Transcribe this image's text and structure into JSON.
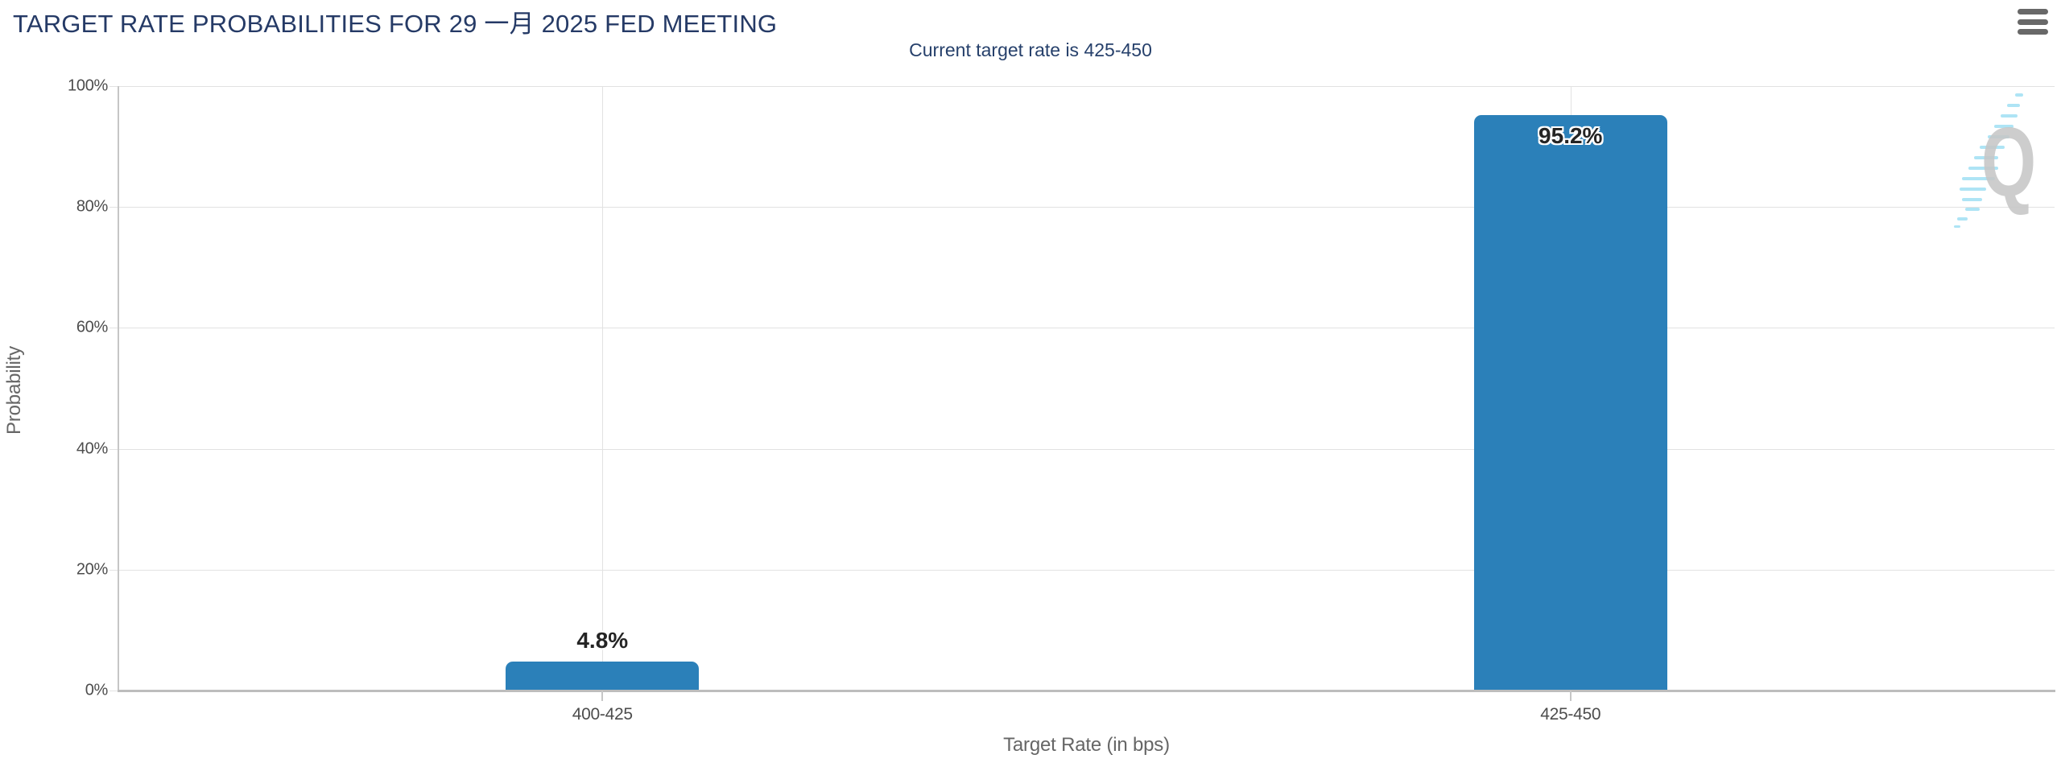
{
  "chart_data": {
    "type": "bar",
    "title": "TARGET RATE PROBABILITIES FOR 29 一月 2025 FED MEETING",
    "subtitle": "Current target rate is 425-450",
    "categories": [
      "400-425",
      "425-450"
    ],
    "values": [
      4.8,
      95.2
    ],
    "value_labels": [
      "4.8%",
      "95.2%"
    ],
    "xlabel": "Target Rate (in bps)",
    "ylabel": "Probability",
    "ylim": [
      0,
      100
    ],
    "yticks": [
      0,
      20,
      40,
      60,
      80,
      100
    ],
    "ytick_labels": [
      "0%",
      "20%",
      "40%",
      "60%",
      "80%",
      "100%"
    ],
    "grid": true,
    "legend": false
  },
  "colors": {
    "bar": "#2b80b9",
    "title_text": "#253a66",
    "subtitle_text": "#26406b",
    "axis_label": "#4d4d4d",
    "axis_title": "#666666",
    "gridline": "#e2e2e2",
    "axis_line": "#c6c6c6",
    "x_axis_line": "#bdbdbd",
    "menu_icon": "#686868",
    "watermark_letter_color": "#c7c7c7",
    "watermark_stripe_color": "#aee4f5"
  },
  "icons": {
    "menu": "hamburger-menu",
    "watermark_letter": "Q"
  }
}
